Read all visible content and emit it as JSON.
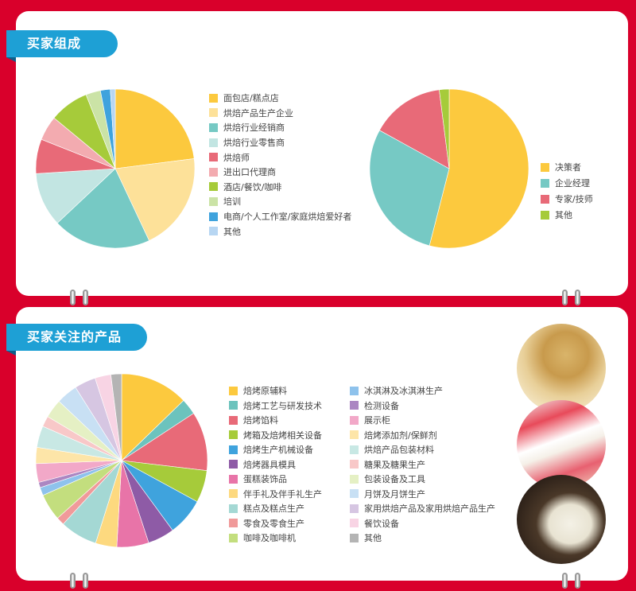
{
  "sections": {
    "buyers_title": "买家组成",
    "products_title": "买家关注的产品"
  },
  "photos": [
    "mooncake-photo",
    "gift-pastry-photo",
    "coffee-photo"
  ],
  "chart_data": [
    {
      "type": "pie",
      "values_unit": "percent (estimated)",
      "series": [
        {
          "name": "面包店/糕点店",
          "value": 23,
          "color": "#fcc93e"
        },
        {
          "name": "烘焙产品生产企业",
          "value": 20,
          "color": "#fde199"
        },
        {
          "name": "烘焙行业经销商",
          "value": 20,
          "color": "#76c9c4"
        },
        {
          "name": "烘焙行业零售商",
          "value": 11,
          "color": "#c2e5e2"
        },
        {
          "name": "烘焙师",
          "value": 7,
          "color": "#e86a78"
        },
        {
          "name": "进出口代理商",
          "value": 5,
          "color": "#f3abb0"
        },
        {
          "name": "酒店/餐饮/咖啡",
          "value": 8,
          "color": "#a6cb3a"
        },
        {
          "name": "培训",
          "value": 3,
          "color": "#cbe3a6"
        },
        {
          "name": "电商/个人工作室/家庭烘焙爱好者",
          "value": 2,
          "color": "#3fa3dd"
        },
        {
          "name": "其他",
          "value": 1,
          "color": "#b7d6f2"
        }
      ]
    },
    {
      "type": "pie",
      "values_unit": "percent (estimated)",
      "series": [
        {
          "name": "决策者",
          "value": 54,
          "color": "#fcc93e"
        },
        {
          "name": "企业经理",
          "value": 29,
          "color": "#76c9c4"
        },
        {
          "name": "专家/技师",
          "value": 15,
          "color": "#e86a78"
        },
        {
          "name": "其他",
          "value": 2,
          "color": "#a6cb3a"
        }
      ]
    },
    {
      "type": "pie",
      "values_unit": "percent (estimated)",
      "series": [
        {
          "name": "焙烤原辅料",
          "value": 12.8,
          "color": "#fcc93e"
        },
        {
          "name": "焙烤工艺与研发技术",
          "value": 3,
          "color": "#6cc3bd"
        },
        {
          "name": "焙烤馅料",
          "value": 11,
          "color": "#e86a78"
        },
        {
          "name": "烤箱及焙烤相关设备",
          "value": 6,
          "color": "#a6cb3a"
        },
        {
          "name": "焙烤生产机械设备",
          "value": 7,
          "color": "#3fa3dd"
        },
        {
          "name": "焙烤器具模具",
          "value": 5,
          "color": "#8e5ba6"
        },
        {
          "name": "蛋糕装饰品",
          "value": 6,
          "color": "#e874a8"
        },
        {
          "name": "伴手礼及伴手礼生产",
          "value": 4,
          "color": "#fdd97f"
        },
        {
          "name": "糕点及糕点生产",
          "value": 7,
          "color": "#a4d8d4"
        },
        {
          "name": "零食及零食生产",
          "value": 1.5,
          "color": "#f09a9a"
        },
        {
          "name": "咖啡及咖啡机",
          "value": 5,
          "color": "#c3de7e"
        },
        {
          "name": "冰淇淋及冰淇淋生产",
          "value": 1.5,
          "color": "#8ec2ec"
        },
        {
          "name": "检测设备",
          "value": 1,
          "color": "#ab86c2"
        },
        {
          "name": "展示柜",
          "value": 3.5,
          "color": "#f2a8c8"
        },
        {
          "name": "焙烤添加剂/保鲜剂",
          "value": 3,
          "color": "#fde5a8"
        },
        {
          "name": "烘焙产品包装材料",
          "value": 4,
          "color": "#c8e8e4"
        },
        {
          "name": "糖果及糖果生产",
          "value": 2,
          "color": "#f8c8c8"
        },
        {
          "name": "包装设备及工具",
          "value": 3.5,
          "color": "#e5f0c4"
        },
        {
          "name": "月饼及月饼生产",
          "value": 4,
          "color": "#c8e0f4"
        },
        {
          "name": "家用烘焙产品及家用烘焙产品生产",
          "value": 4,
          "color": "#d6c6e2"
        },
        {
          "name": "餐饮设备",
          "value": 3,
          "color": "#f8d4e4"
        },
        {
          "name": "其他",
          "value": 2,
          "color": "#b4b4b4"
        }
      ]
    }
  ]
}
